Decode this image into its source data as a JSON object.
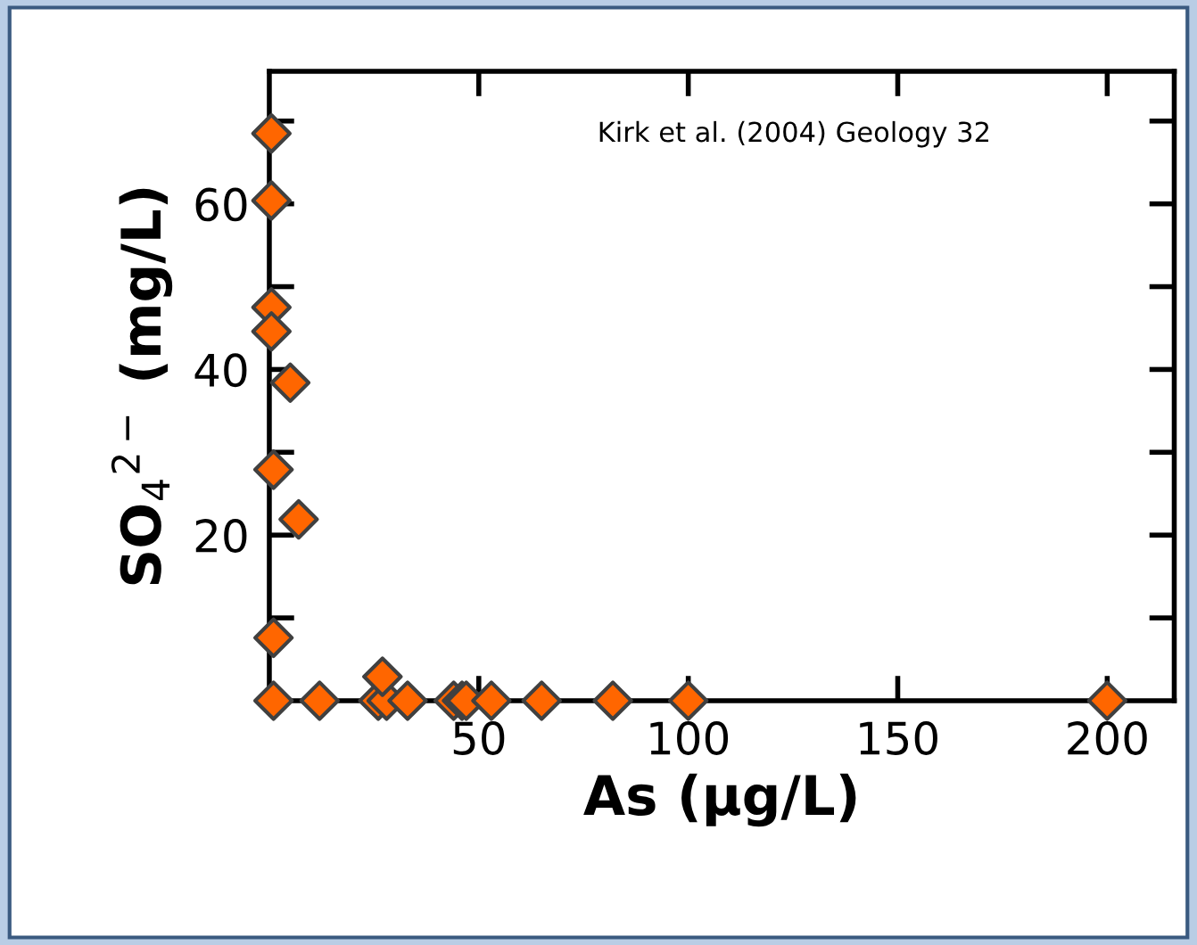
{
  "chart_data": {
    "type": "scatter",
    "xlabel": "As (µg/L)",
    "ylabel": "SO$_{4}$$^{2−}$ (mg/L)",
    "annotations": [
      "Kirk et al. (2004) Geology 32"
    ],
    "xlim": [
      0,
      216
    ],
    "ylim": [
      0,
      76
    ],
    "xticks": [
      50,
      100,
      150,
      200
    ],
    "yticks": [
      {
        "value": 10,
        "label": null
      },
      20,
      {
        "value": 30,
        "label": null
      },
      40,
      {
        "value": 50,
        "label": null
      },
      60,
      {
        "value": 70,
        "label": null
      }
    ],
    "marker": "diamond",
    "grid": false,
    "series": [
      {
        "color": "#ff6600",
        "x": [
          0.5,
          0.5,
          0.5,
          0.5,
          1,
          5,
          7,
          1,
          1,
          12,
          26,
          28,
          33,
          44,
          46,
          47,
          53,
          65,
          82,
          100,
          200,
          27
        ],
        "values": [
          68.5,
          60.4,
          47.5,
          44.6,
          27.9,
          38.4,
          21.9,
          7.6,
          0,
          0,
          0,
          0,
          0,
          0,
          0,
          0,
          0,
          0,
          0,
          0,
          0,
          2.9
        ]
      }
    ]
  }
}
